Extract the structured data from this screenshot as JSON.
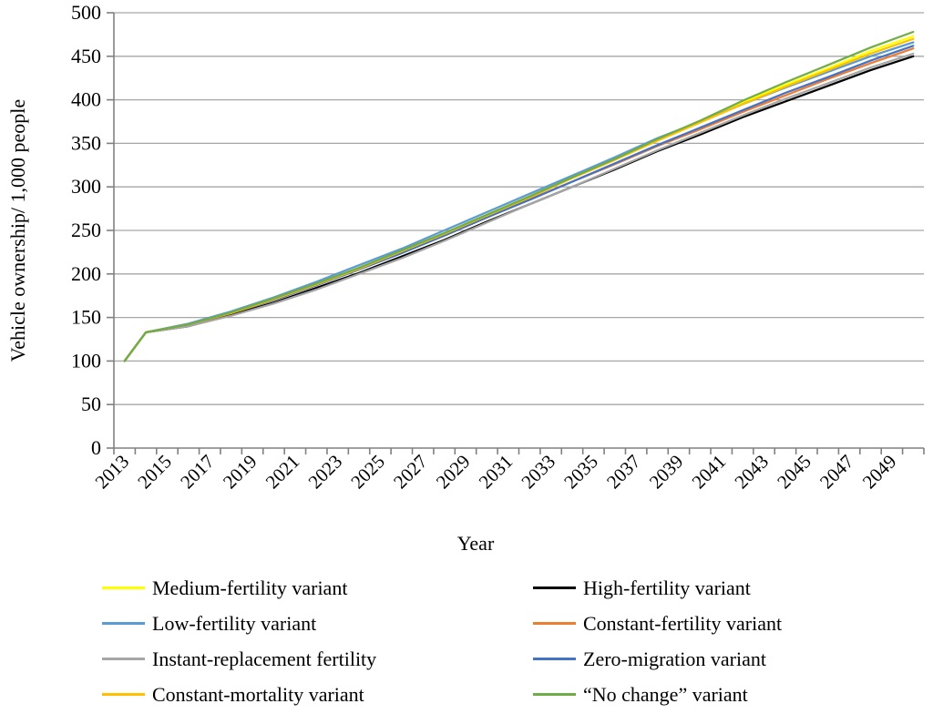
{
  "chart_data": {
    "type": "line",
    "title": "",
    "xlabel": "Year",
    "ylabel": "Vehicle ownership/ 1,000 people",
    "x": [
      2013,
      2014,
      2016,
      2018,
      2020,
      2022,
      2024,
      2026,
      2028,
      2030,
      2032,
      2034,
      2036,
      2038,
      2040,
      2042,
      2044,
      2046,
      2048,
      2050
    ],
    "x_range": [
      2013,
      2050
    ],
    "xtick_labels": [
      "2013",
      "2015",
      "2017",
      "2019",
      "2021",
      "2023",
      "2025",
      "2027",
      "2029",
      "2031",
      "2033",
      "2035",
      "2037",
      "2039",
      "2041",
      "2043",
      "2045",
      "2047",
      "2049"
    ],
    "yticks": [
      0,
      50,
      100,
      150,
      200,
      250,
      300,
      350,
      400,
      450,
      500
    ],
    "ylim": [
      0,
      500
    ],
    "grid": "horizontal",
    "gridline_color": "#A6A6A6",
    "axis_color": "#808080",
    "legend_position": "bottom",
    "series": [
      {
        "name": "Medium-fertility variant",
        "color": "#FFFF00",
        "values": [
          100,
          133,
          142,
          155,
          171,
          188,
          207,
          226,
          246,
          268,
          289,
          311,
          332,
          355,
          375,
          397,
          417,
          436,
          456,
          473
        ]
      },
      {
        "name": "High-fertility variant",
        "color": "#000000",
        "values": [
          100,
          133,
          140,
          153,
          167,
          184,
          201,
          220,
          239,
          260,
          280,
          300,
          320,
          341,
          360,
          380,
          398,
          416,
          434,
          450
        ]
      },
      {
        "name": "Low-fertility variant",
        "color": "#5B9BD5",
        "values": [
          100,
          133,
          143,
          157,
          173,
          191,
          210,
          229,
          250,
          271,
          292,
          313,
          334,
          356,
          375,
          395,
          414,
          432,
          450,
          466
        ]
      },
      {
        "name": "Constant-fertility variant",
        "color": "#ED7D31",
        "values": [
          100,
          133,
          142,
          155,
          170,
          188,
          206,
          225,
          244,
          265,
          286,
          306,
          326,
          347,
          366,
          386,
          405,
          424,
          442,
          459
        ]
      },
      {
        "name": "Instant-replacement fertility",
        "color": "#A6A6A6",
        "values": [
          100,
          133,
          140,
          152,
          166,
          182,
          200,
          218,
          238,
          259,
          280,
          300,
          321,
          342,
          362,
          382,
          401,
          419,
          437,
          453
        ]
      },
      {
        "name": "Zero-migration variant",
        "color": "#4472C4",
        "values": [
          100,
          133,
          142,
          155,
          170,
          187,
          205,
          224,
          244,
          265,
          285,
          306,
          327,
          348,
          368,
          388,
          408,
          426,
          445,
          462
        ]
      },
      {
        "name": "Constant-mortality variant",
        "color": "#FFC000",
        "values": [
          100,
          133,
          142,
          155,
          171,
          188,
          206,
          226,
          246,
          267,
          288,
          310,
          331,
          353,
          374,
          395,
          415,
          434,
          453,
          470
        ]
      },
      {
        "name": "“No change” variant",
        "color": "#70AD47",
        "values": [
          100,
          133,
          142,
          156,
          172,
          189,
          207,
          227,
          247,
          268,
          289,
          311,
          332,
          355,
          376,
          399,
          420,
          440,
          460,
          478
        ]
      }
    ]
  },
  "legend": {
    "columns": [
      {
        "items": [
          {
            "label": "Medium-fertility variant",
            "color": "#FFFF00"
          },
          {
            "label": "Low-fertility variant",
            "color": "#5B9BD5"
          },
          {
            "label": "Instant-replacement fertility",
            "color": "#A6A6A6"
          },
          {
            "label": "Constant-mortality variant",
            "color": "#FFC000"
          }
        ]
      },
      {
        "items": [
          {
            "label": "High-fertility variant",
            "color": "#000000"
          },
          {
            "label": "Constant-fertility variant",
            "color": "#ED7D31"
          },
          {
            "label": "Zero-migration variant",
            "color": "#4472C4"
          },
          {
            "label": "“No change” variant",
            "color": "#70AD47"
          }
        ]
      }
    ]
  }
}
